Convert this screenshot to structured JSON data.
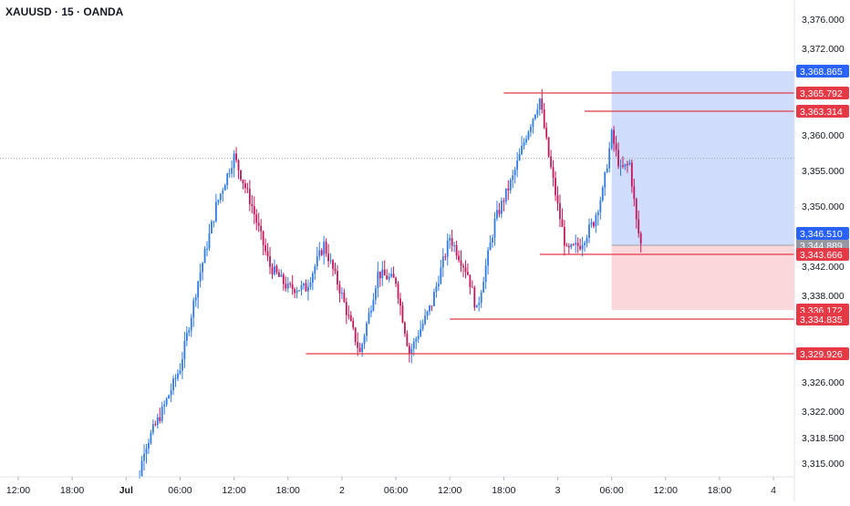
{
  "header": {
    "symbol_line": "XAUUSD · 15 · OANDA"
  },
  "colors": {
    "up": "#2f7ae5",
    "down": "#c2185b",
    "level": "#e53946",
    "long_zone": "#cfdcfb",
    "short_zone": "#fbd6da",
    "tag_blue": "#2962ff",
    "tag_red": "#e53946",
    "axis_text": "#131722"
  },
  "chart_data": {
    "type": "candlestick",
    "symbol": "XAUUSD",
    "interval": "15",
    "exchange": "OANDA",
    "y_ticks": [
      {
        "value": 3376,
        "label": "3,376.000"
      },
      {
        "value": 3372,
        "label": "3,372.000"
      },
      {
        "value": 3360,
        "label": "3,360.000"
      },
      {
        "value": 3355,
        "label": "3,355.000"
      },
      {
        "value": 3350,
        "label": "3,350.000"
      },
      {
        "value": 3342,
        "label": "3,342.000"
      },
      {
        "value": 3338,
        "label": "3,338.000"
      },
      {
        "value": 3326,
        "label": "3,326.000"
      },
      {
        "value": 3322,
        "label": "3,322.000"
      },
      {
        "value": 3318.5,
        "label": "3,318.500"
      },
      {
        "value": 3315,
        "label": "3,315.000"
      }
    ],
    "x_ticks": [
      {
        "time": "2025-06-30 12:00",
        "label": "12:00",
        "bold": false
      },
      {
        "time": "2025-06-30 18:00",
        "label": "18:00",
        "bold": false
      },
      {
        "time": "2025-07-01 00:00",
        "label": "Jul",
        "bold": true
      },
      {
        "time": "2025-07-01 06:00",
        "label": "06:00",
        "bold": false
      },
      {
        "time": "2025-07-01 12:00",
        "label": "12:00",
        "bold": false
      },
      {
        "time": "2025-07-01 18:00",
        "label": "18:00",
        "bold": false
      },
      {
        "time": "2025-07-02 00:00",
        "label": "2",
        "bold": false
      },
      {
        "time": "2025-07-02 06:00",
        "label": "06:00",
        "bold": false
      },
      {
        "time": "2025-07-02 12:00",
        "label": "12:00",
        "bold": false
      },
      {
        "time": "2025-07-02 18:00",
        "label": "18:00",
        "bold": false
      },
      {
        "time": "2025-07-03 00:00",
        "label": "3",
        "bold": false
      },
      {
        "time": "2025-07-03 06:00",
        "label": "06:00",
        "bold": false
      },
      {
        "time": "2025-07-03 12:00",
        "label": "12:00",
        "bold": false
      },
      {
        "time": "2025-07-03 18:00",
        "label": "18:00",
        "bold": false
      },
      {
        "time": "2025-07-04 00:00",
        "label": "4",
        "bold": false
      }
    ],
    "price_path": [
      {
        "time": "2025-07-01 00:00",
        "price": 3303
      },
      {
        "time": "2025-07-01 02:00",
        "price": 3317
      },
      {
        "time": "2025-07-01 04:00",
        "price": 3322
      },
      {
        "time": "2025-07-01 06:00",
        "price": 3328
      },
      {
        "time": "2025-07-01 08:00",
        "price": 3340
      },
      {
        "time": "2025-07-01 10:00",
        "price": 3350
      },
      {
        "time": "2025-07-01 12:00",
        "price": 3357
      },
      {
        "time": "2025-07-01 14:00",
        "price": 3350
      },
      {
        "time": "2025-07-01 16:00",
        "price": 3342
      },
      {
        "time": "2025-07-01 18:00",
        "price": 3339
      },
      {
        "time": "2025-07-01 20:00",
        "price": 3339
      },
      {
        "time": "2025-07-01 22:00",
        "price": 3345
      },
      {
        "time": "2025-07-02 00:00",
        "price": 3338
      },
      {
        "time": "2025-07-02 02:00",
        "price": 3330
      },
      {
        "time": "2025-07-02 04:00",
        "price": 3341
      },
      {
        "time": "2025-07-02 06:00",
        "price": 3340
      },
      {
        "time": "2025-07-02 07:30",
        "price": 3330
      },
      {
        "time": "2025-07-02 10:00",
        "price": 3337
      },
      {
        "time": "2025-07-02 12:00",
        "price": 3346
      },
      {
        "time": "2025-07-02 14:00",
        "price": 3341
      },
      {
        "time": "2025-07-02 15:00",
        "price": 3336
      },
      {
        "time": "2025-07-02 17:00",
        "price": 3348
      },
      {
        "time": "2025-07-02 19:00",
        "price": 3354
      },
      {
        "time": "2025-07-02 20:30",
        "price": 3360
      },
      {
        "time": "2025-07-02 22:00",
        "price": 3365
      },
      {
        "time": "2025-07-02 23:00",
        "price": 3357
      },
      {
        "time": "2025-07-03 00:00",
        "price": 3350
      },
      {
        "time": "2025-07-03 01:00",
        "price": 3344
      },
      {
        "time": "2025-07-03 02:30",
        "price": 3345
      },
      {
        "time": "2025-07-03 04:00",
        "price": 3348
      },
      {
        "time": "2025-07-03 05:00",
        "price": 3352
      },
      {
        "time": "2025-07-03 06:00",
        "price": 3360
      },
      {
        "time": "2025-07-03 07:00",
        "price": 3355
      },
      {
        "time": "2025-07-03 08:00",
        "price": 3356
      },
      {
        "time": "2025-07-03 08:45",
        "price": 3348
      },
      {
        "time": "2025-07-03 09:15",
        "price": 3345
      }
    ],
    "horizontal_levels": [
      {
        "label": "3,365.792",
        "value": 3365.792,
        "from": "2025-07-02 18:00"
      },
      {
        "label": "3,363.314",
        "value": 3363.314,
        "from": "2025-07-03 03:00"
      },
      {
        "label": "3,343.666",
        "value": 3343.666,
        "from": "2025-07-02 22:00"
      },
      {
        "label": "3,334.835",
        "value": 3334.835,
        "from": "2025-07-02 12:00"
      },
      {
        "label": "3,329.926",
        "value": 3329.926,
        "from": "2025-07-01 20:00"
      }
    ],
    "position_tool": {
      "entry": 3344.889,
      "entry_label": "3,344.889",
      "target": 3368.865,
      "target_label": "3,368.865",
      "stop": 3336.172,
      "stop_label": "3,336.172",
      "from": "2025-07-03 06:00"
    },
    "last_price": {
      "value": 3346.51,
      "label": "3,346.510"
    },
    "ref_dotted_line": 3356.7
  }
}
